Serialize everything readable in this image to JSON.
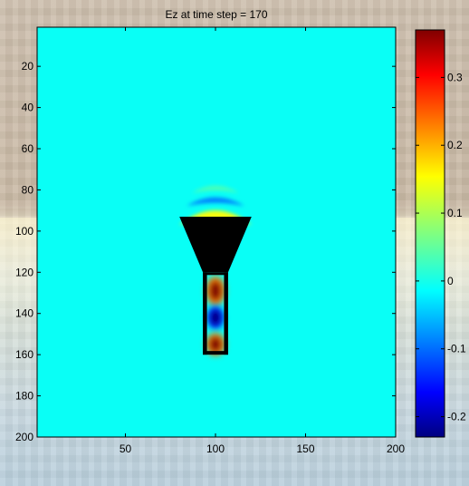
{
  "chart_data": {
    "type": "heatmap",
    "title": "Ez at time step = 170",
    "xlabel": "",
    "ylabel": "",
    "xlim": [
      1,
      200
    ],
    "ylim": [
      1,
      200
    ],
    "y_direction": "reversed",
    "x_ticks": [
      50,
      100,
      150,
      200
    ],
    "y_ticks": [
      20,
      40,
      60,
      80,
      100,
      120,
      140,
      160,
      180,
      200
    ],
    "colormap": "jet",
    "colorbar": {
      "range": [
        -0.23,
        0.37
      ],
      "ticks": [
        -0.2,
        -0.1,
        0,
        0.1,
        0.2,
        0.3
      ],
      "tick_labels": [
        "-0.2",
        "-0.1",
        "0",
        "0.1",
        "0.2",
        "0.3"
      ],
      "placement": "right"
    },
    "background_value": 0,
    "structure": {
      "color": "#000000",
      "funnel": {
        "top_y": 93,
        "bottom_y": 120,
        "top_x": [
          80,
          120
        ],
        "bottom_x": [
          93,
          107
        ]
      },
      "tube": {
        "top_y": 120,
        "bottom_y": 160,
        "x": [
          93,
          107
        ]
      }
    },
    "field_features": [
      {
        "kind": "arc",
        "cx": 100,
        "cy": 94,
        "rx": 20,
        "ry": 5,
        "value": 0.14
      },
      {
        "kind": "arc",
        "cx": 100,
        "cy": 86,
        "rx": 16,
        "ry": 3,
        "value": -0.08
      },
      {
        "kind": "arc",
        "cx": 100,
        "cy": 80,
        "rx": 13,
        "ry": 2.5,
        "value": 0.04
      },
      {
        "kind": "blob",
        "cx": 100,
        "cy": 129,
        "rx": 3.5,
        "ry": 7,
        "value": 0.37
      },
      {
        "kind": "blob",
        "cx": 100,
        "cy": 142,
        "rx": 3,
        "ry": 5.5,
        "value": -0.23
      },
      {
        "kind": "blob",
        "cx": 100,
        "cy": 155,
        "rx": 3.5,
        "ry": 5.5,
        "value": 0.37
      }
    ]
  },
  "colors": {
    "background_field": "#20ffdf",
    "structure": "#000000"
  }
}
